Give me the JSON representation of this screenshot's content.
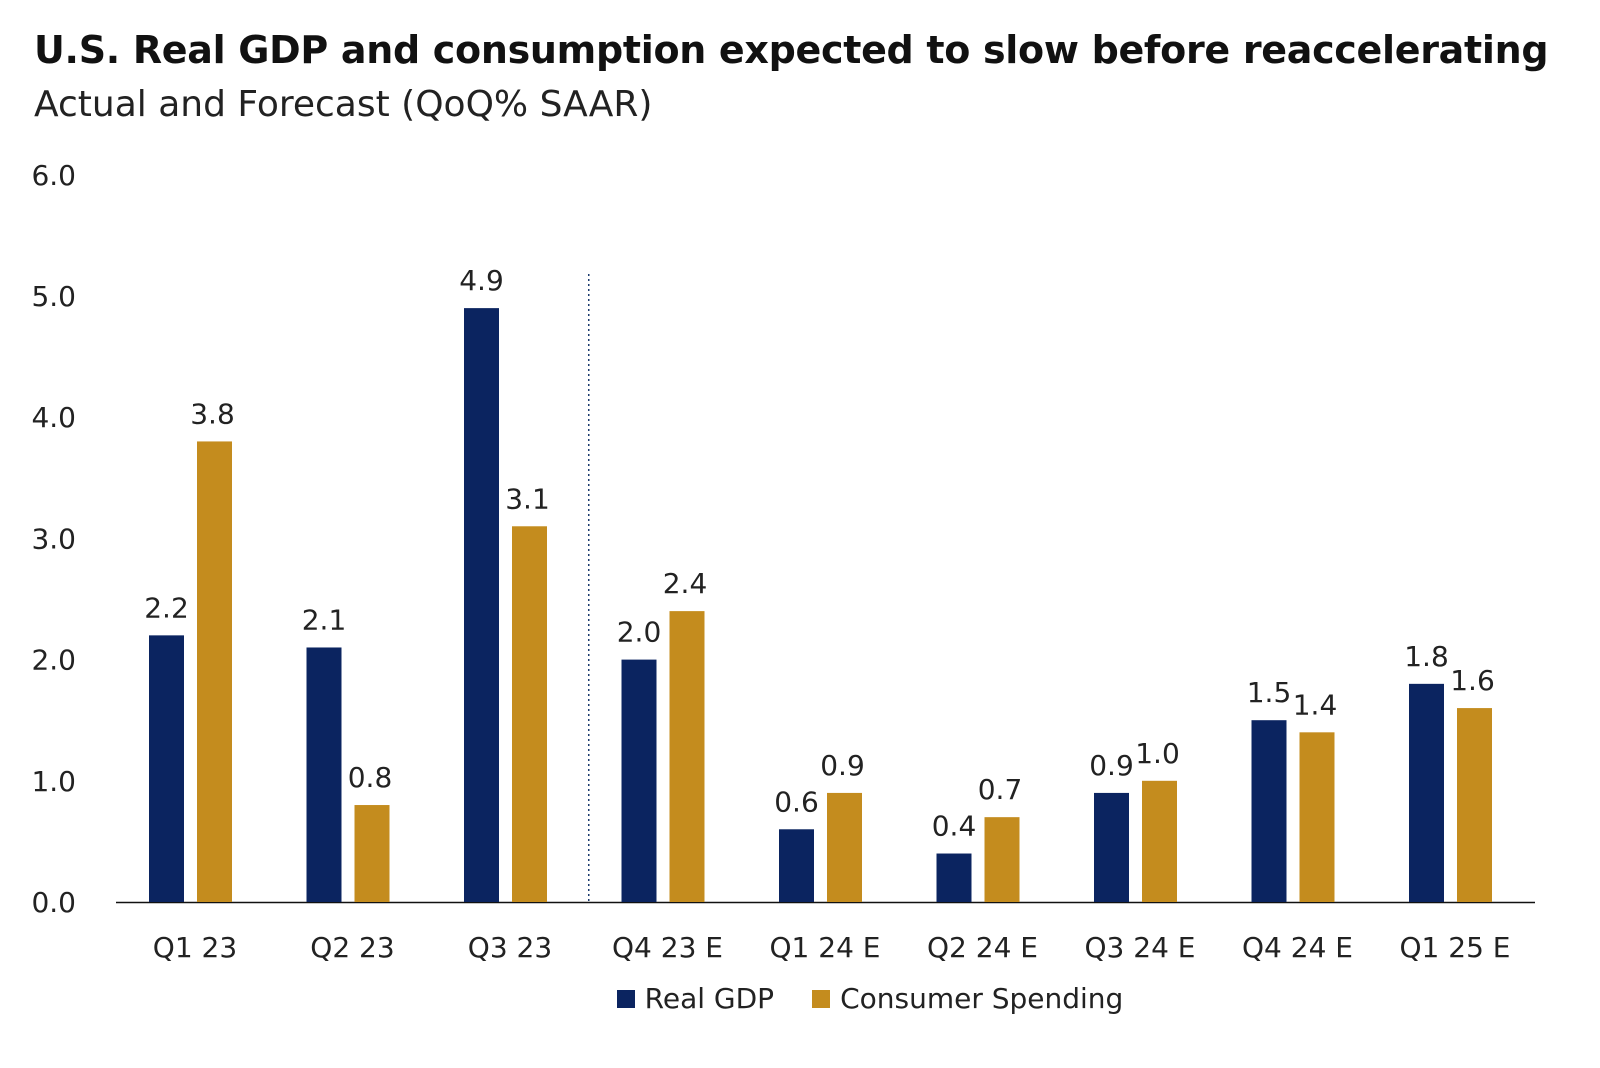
{
  "chart_data": {
    "type": "bar",
    "title": "U.S. Real GDP and consumption expected to slow before reaccelerating",
    "subtitle": "Actual and Forecast (QoQ% SAAR)",
    "categories": [
      "Q1 23",
      "Q2 23",
      "Q3 23",
      "Q4 23 E",
      "Q1 24 E",
      "Q2 24 E",
      "Q3 24 E",
      "Q4 24 E",
      "Q1 25 E"
    ],
    "series": [
      {
        "name": "Real GDP",
        "color": "#0b2460",
        "values": [
          2.2,
          2.1,
          4.9,
          2.0,
          0.6,
          0.4,
          0.9,
          1.5,
          1.8
        ],
        "labels": [
          "2.2",
          "2.1",
          "4.9",
          "2.0",
          "0.6",
          "0.4",
          "0.9",
          "1.5",
          "1.8"
        ]
      },
      {
        "name": "Consumer Spending",
        "color": "#c48c1e",
        "values": [
          3.8,
          0.8,
          3.1,
          2.4,
          0.9,
          0.7,
          1.0,
          1.4,
          1.6
        ],
        "labels": [
          "3.8",
          "0.8",
          "3.1",
          "2.4",
          "0.9",
          "0.7",
          "1.0",
          "1.4",
          "1.6"
        ]
      }
    ],
    "yticks": [
      "0.0",
      "1.0",
      "2.0",
      "3.0",
      "4.0",
      "5.0",
      "6.0"
    ],
    "ylim": [
      0,
      6
    ],
    "forecast_divider_after_category": "Q3 23",
    "legend_position": "bottom",
    "grid": false
  }
}
